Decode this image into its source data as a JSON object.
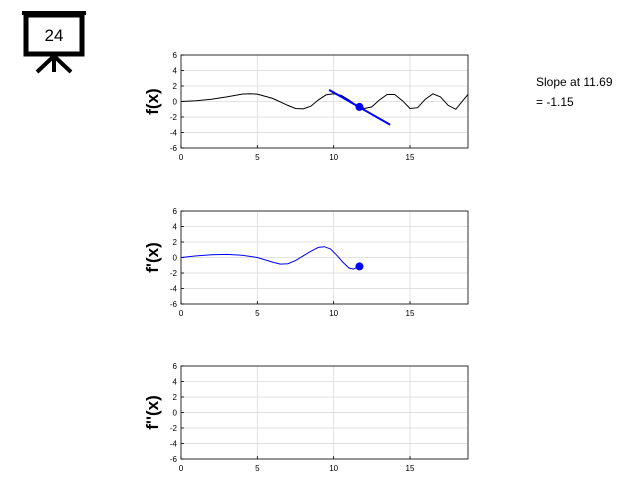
{
  "badge": {
    "number": "24"
  },
  "annotation": {
    "line1": "Slope at 11.69",
    "line2": "= -1.15"
  },
  "colors": {
    "function": "#000000",
    "derivative": "#0000ff",
    "tangent": "#0000ff",
    "marker": "#0000ff",
    "grid": "#d9d9d9"
  },
  "chart_data": [
    {
      "type": "line",
      "ylabel": "f(x)",
      "xlim": [
        0,
        18.8
      ],
      "ylim": [
        -6,
        6
      ],
      "xticks": [
        0,
        5,
        10,
        15
      ],
      "yticks": [
        6,
        4,
        2,
        0,
        -2,
        -4,
        -6
      ],
      "grid": true,
      "series": [
        {
          "color": "#000000",
          "x": [
            0,
            1,
            2,
            3,
            4,
            4.5,
            5,
            6,
            7,
            7.5,
            8,
            8.5,
            9,
            9.5,
            10,
            10.5,
            11,
            11.5,
            11.69,
            12,
            12.5,
            13,
            13.5,
            14,
            14.5,
            15,
            15.5,
            16,
            16.5,
            17,
            17.5,
            18,
            18.5,
            18.8
          ],
          "y": [
            0,
            0.1,
            0.3,
            0.6,
            0.95,
            1,
            0.95,
            0.4,
            -0.5,
            -0.9,
            -0.95,
            -0.6,
            0.2,
            0.85,
            1.0,
            0.8,
            0.2,
            -0.5,
            -0.7,
            -0.9,
            -0.7,
            0.2,
            0.9,
            0.9,
            0.1,
            -0.9,
            -0.8,
            0.3,
            1.0,
            0.6,
            -0.5,
            -1.0,
            0.2,
            0.9
          ]
        }
      ],
      "tangent": {
        "x": [
          9.7,
          13.7
        ],
        "y": [
          1.5,
          -3.0
        ]
      },
      "marker": {
        "x": 11.69,
        "y": -0.7
      }
    },
    {
      "type": "line",
      "ylabel": "f'(x)",
      "xlim": [
        0,
        18.8
      ],
      "ylim": [
        -6,
        6
      ],
      "xticks": [
        0,
        5,
        10,
        15
      ],
      "yticks": [
        6,
        4,
        2,
        0,
        -2,
        -4,
        -6
      ],
      "grid": true,
      "series": [
        {
          "color": "#0000ff",
          "x": [
            0,
            1,
            2,
            3,
            4,
            5,
            6,
            6.5,
            7,
            7.5,
            8,
            8.5,
            9,
            9.4,
            9.8,
            10.2,
            10.6,
            11,
            11.3,
            11.69
          ],
          "y": [
            0,
            0.2,
            0.35,
            0.4,
            0.3,
            0,
            -0.6,
            -0.85,
            -0.8,
            -0.4,
            0.2,
            0.8,
            1.3,
            1.4,
            1.1,
            0.3,
            -0.6,
            -1.35,
            -1.5,
            -1.15
          ]
        }
      ],
      "marker": {
        "x": 11.69,
        "y": -1.15
      }
    },
    {
      "type": "line",
      "ylabel": "f''(x)",
      "xlim": [
        0,
        18.8
      ],
      "ylim": [
        -6,
        6
      ],
      "xticks": [
        0,
        5,
        10,
        15
      ],
      "yticks": [
        6,
        4,
        2,
        0,
        -2,
        -4,
        -6
      ],
      "grid": true,
      "series": []
    }
  ]
}
